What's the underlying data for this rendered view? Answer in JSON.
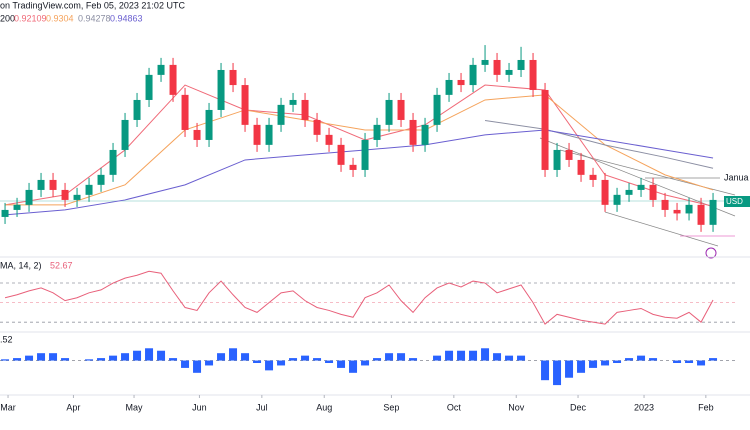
{
  "chart_data": {
    "type": "candlestick",
    "title": "on TradingView.com, Feb 05, 2023 21:02 UTC",
    "indicator_label": "200",
    "up_color": "#089981",
    "down_color": "#f23645",
    "xlim": [
      -0.42,
      60.83
    ],
    "ylim": [
      0.8933,
      1.0387
    ],
    "xticks": [
      {
        "value": 0.25,
        "label": "Mar"
      },
      {
        "value": 5.7,
        "label": "Apr"
      },
      {
        "value": 10.75,
        "label": "May"
      },
      {
        "value": 16.2,
        "label": "Jun"
      },
      {
        "value": 21.4,
        "label": "Jul"
      },
      {
        "value": 26.6,
        "label": "Aug"
      },
      {
        "value": 32.2,
        "label": "Sep"
      },
      {
        "value": 37.4,
        "label": "Oct"
      },
      {
        "value": 42.6,
        "label": "Nov"
      },
      {
        "value": 47.75,
        "label": "Dec"
      },
      {
        "value": 53.25,
        "label": "2023"
      },
      {
        "value": 58.4,
        "label": "Feb"
      }
    ],
    "open": [
      0.915,
      0.919,
      0.9219,
      0.9304,
      0.9361,
      0.9304,
      0.9247,
      0.9276,
      0.9333,
      0.939,
      0.9532,
      0.9703,
      0.9817,
      0.996,
      1.0017,
      0.9846,
      0.9646,
      0.9589,
      0.976,
      0.9988,
      0.9902,
      0.9675,
      0.9561,
      0.9675,
      0.9789,
      0.9817,
      0.9703,
      0.9618,
      0.9561,
      0.9447,
      0.9418,
      0.9589,
      0.9675,
      0.9817,
      0.9703,
      0.9561,
      0.9675,
      0.9846,
      0.9931,
      0.9902,
      1.0017,
      1.0045,
      0.996,
      0.9988,
      1.0045,
      0.9874,
      0.9418,
      0.9532,
      0.9475,
      0.939,
      0.9361,
      0.9219,
      0.9276,
      0.9304,
      0.9333,
      0.9247,
      0.919,
      0.917,
      0.9219,
      0.9105
    ],
    "high": [
      0.923,
      0.9259,
      0.9344,
      0.9401,
      0.9401,
      0.9344,
      0.9316,
      0.9373,
      0.943,
      0.9572,
      0.9743,
      0.9857,
      1.0,
      1.0057,
      1.0057,
      0.9886,
      0.9686,
      0.98,
      1.0028,
      1.0028,
      0.9942,
      0.9715,
      0.9715,
      0.9829,
      0.9857,
      0.9857,
      0.9743,
      0.9658,
      0.9601,
      0.9487,
      0.9629,
      0.9715,
      0.9857,
      0.9857,
      0.9743,
      0.9715,
      0.9886,
      0.9971,
      0.9971,
      1.0057,
      1.013,
      1.0085,
      1.0028,
      1.012,
      1.0085,
      0.9914,
      0.9572,
      0.9572,
      0.9515,
      0.943,
      0.9401,
      0.9316,
      0.9344,
      0.9373,
      0.9373,
      0.9287,
      0.923,
      0.9259,
      0.9259,
      0.9287
    ],
    "low": [
      0.911,
      0.915,
      0.9179,
      0.9264,
      0.9264,
      0.9207,
      0.9207,
      0.9236,
      0.9293,
      0.935,
      0.9492,
      0.9663,
      0.9777,
      0.992,
      0.9806,
      0.9606,
      0.9549,
      0.9549,
      0.972,
      0.9862,
      0.9635,
      0.9521,
      0.9521,
      0.9635,
      0.9749,
      0.9663,
      0.9578,
      0.9521,
      0.9407,
      0.9378,
      0.9378,
      0.9549,
      0.9635,
      0.9663,
      0.9521,
      0.9521,
      0.9635,
      0.9806,
      0.9862,
      0.9862,
      0.9977,
      0.992,
      0.992,
      0.9948,
      0.9834,
      0.9378,
      0.9378,
      0.9435,
      0.935,
      0.9321,
      0.9179,
      0.9179,
      0.9236,
      0.9264,
      0.9207,
      0.915,
      0.913,
      0.913,
      0.9065,
      0.9065
    ],
    "close": [
      0.919,
      0.9219,
      0.9304,
      0.9361,
      0.9304,
      0.9247,
      0.9276,
      0.9333,
      0.939,
      0.9532,
      0.9703,
      0.9817,
      0.996,
      1.0017,
      0.9846,
      0.9646,
      0.9589,
      0.976,
      0.9988,
      0.9902,
      0.9675,
      0.9561,
      0.9675,
      0.9789,
      0.9817,
      0.9703,
      0.9618,
      0.9561,
      0.9447,
      0.9418,
      0.9589,
      0.9675,
      0.9817,
      0.9703,
      0.9561,
      0.9675,
      0.9846,
      0.9931,
      0.9902,
      1.0017,
      1.0045,
      0.996,
      0.9988,
      1.0045,
      0.9874,
      0.9418,
      0.9532,
      0.9475,
      0.939,
      0.9361,
      0.9219,
      0.9276,
      0.9304,
      0.9333,
      0.9247,
      0.919,
      0.917,
      0.9219,
      0.9105,
      0.9247
    ],
    "ma_x": [
      0,
      5,
      10,
      15,
      20,
      25,
      30,
      35,
      40,
      45,
      50,
      55,
      59
    ],
    "series": [
      {
        "color": "#f06a78",
        "values": [
          0.9219,
          0.9276,
          0.9532,
          0.9902,
          0.976,
          0.9732,
          0.9589,
          0.9675,
          0.9902,
          0.9874,
          0.939,
          0.9276,
          0.92109
        ]
      },
      {
        "color": "#f5a35c",
        "values": [
          0.9219,
          0.9219,
          0.9333,
          0.9646,
          0.976,
          0.9703,
          0.9646,
          0.9646,
          0.9817,
          0.9846,
          0.9561,
          0.939,
          0.9304
        ]
      },
      {
        "color": "#8c8fa3",
        "values": [
          null,
          null,
          null,
          null,
          null,
          null,
          null,
          null,
          0.97,
          0.965,
          0.956,
          0.949,
          0.94278
        ]
      },
      {
        "color": "#6a5fd0",
        "values": [
          0.9162,
          0.919,
          0.9247,
          0.9333,
          0.9475,
          0.9504,
          0.9532,
          0.9561,
          0.9618,
          0.9646,
          0.9589,
          0.9532,
          0.94863
        ]
      }
    ],
    "annotation": "Janua",
    "price_tag": "USD",
    "rsi": {
      "label": "MA, 14, 2)",
      "color": "#e8607a",
      "ylim": [
        22,
        91.5
      ],
      "levels": [
        70,
        50,
        30
      ],
      "values": [
        55,
        58,
        62,
        65,
        60,
        52,
        55,
        60,
        63,
        70,
        75,
        78,
        82,
        80,
        62,
        45,
        42,
        60,
        72,
        58,
        45,
        40,
        50,
        60,
        62,
        52,
        45,
        42,
        38,
        35,
        55,
        60,
        68,
        52,
        40,
        55,
        65,
        70,
        66,
        72,
        70,
        60,
        64,
        68,
        50,
        28,
        38,
        35,
        32,
        30,
        28,
        40,
        42,
        44,
        38,
        35,
        34,
        40,
        30,
        52.67
      ]
    },
    "macd": {
      "label": ".52",
      "color": "#2962ff",
      "ylim": [
        -0.012,
        0.01
      ],
      "values": [
        0.0005,
        0.001,
        0.002,
        0.003,
        0.003,
        0.001,
        0,
        0.0005,
        0.001,
        0.002,
        0.003,
        0.004,
        0.005,
        0.004,
        0.001,
        -0.003,
        -0.005,
        -0.002,
        0.003,
        0.005,
        0.003,
        -0.001,
        -0.004,
        -0.002,
        0.001,
        0.002,
        0.001,
        -0.001,
        -0.003,
        -0.005,
        -0.002,
        0.001,
        0.003,
        0.003,
        0.001,
        0,
        0.002,
        0.004,
        0.004,
        0.004,
        0.005,
        0.003,
        0.002,
        0.002,
        0,
        -0.008,
        -0.01,
        -0.007,
        -0.005,
        -0.003,
        -0.002,
        -0.001,
        0.001,
        0.002,
        0.001,
        0,
        -0.001,
        -0.001,
        -0.002,
        0.001
      ]
    }
  }
}
